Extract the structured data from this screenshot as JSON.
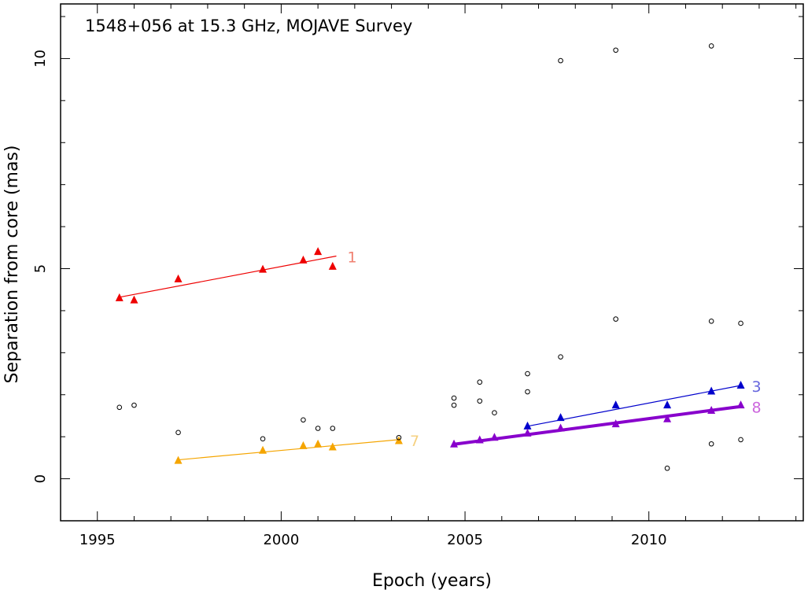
{
  "chart_data": {
    "type": "scatter",
    "title": "1548+056 at 15.3 GHz, MOJAVE Survey",
    "xlabel": "Epoch (years)",
    "ylabel": "Separation from core (mas)",
    "xlim": [
      1994,
      2014.2
    ],
    "ylim": [
      -1,
      11.3
    ],
    "xticks": [
      1995,
      2000,
      2005,
      2010
    ],
    "yticks": [
      0,
      5,
      10
    ],
    "grid": false,
    "series": [
      {
        "name": "1",
        "color": "#ee0000",
        "label_color": "#f08070",
        "thick": false,
        "x": [
          1995.6,
          1996.0,
          1997.2,
          1999.5,
          2000.6,
          2001.0,
          2001.4
        ],
        "y": [
          4.3,
          4.25,
          4.75,
          4.98,
          5.2,
          5.4,
          5.05
        ],
        "fit": [
          [
            1995.6,
            4.32
          ],
          [
            2001.5,
            5.3
          ]
        ]
      },
      {
        "name": "7",
        "color": "#f5a500",
        "label_color": "#f5d080",
        "thick": false,
        "x": [
          1997.2,
          1999.5,
          2000.6,
          2001.0,
          2001.4,
          2003.2
        ],
        "y": [
          0.43,
          0.67,
          0.78,
          0.82,
          0.75,
          0.9
        ],
        "fit": [
          [
            1997.2,
            0.45
          ],
          [
            2003.2,
            0.93
          ]
        ]
      },
      {
        "name": "3",
        "color": "#0000cc",
        "label_color": "#6666dd",
        "thick": false,
        "x": [
          2006.7,
          2007.6,
          2009.1,
          2010.5,
          2011.7,
          2012.5
        ],
        "y": [
          1.25,
          1.45,
          1.75,
          1.75,
          2.08,
          2.22
        ],
        "fit": [
          [
            2006.7,
            1.25
          ],
          [
            2012.5,
            2.22
          ]
        ]
      },
      {
        "name": "8",
        "color": "#8800cc",
        "label_color": "#cc66dd",
        "thick": true,
        "x": [
          2004.7,
          2005.4,
          2005.8,
          2006.7,
          2007.6,
          2009.1,
          2010.5,
          2011.7,
          2012.5
        ],
        "y": [
          0.82,
          0.92,
          0.98,
          1.08,
          1.2,
          1.3,
          1.42,
          1.62,
          1.75
        ],
        "fit": [
          [
            2004.7,
            0.82
          ],
          [
            2012.5,
            1.72
          ]
        ]
      }
    ],
    "unassigned": {
      "x": [
        1995.6,
        1996.0,
        1997.2,
        1999.5,
        2000.6,
        2001.0,
        2001.4,
        2003.2,
        2004.7,
        2004.7,
        2005.4,
        2005.4,
        2005.8,
        2006.7,
        2006.7,
        2007.6,
        2007.6,
        2009.1,
        2009.1,
        2010.5,
        2011.7,
        2011.7,
        2011.7,
        2012.5,
        2012.5
      ],
      "y": [
        1.7,
        1.75,
        1.1,
        0.95,
        1.4,
        1.2,
        1.2,
        0.98,
        1.92,
        1.75,
        2.3,
        1.85,
        1.57,
        2.5,
        2.07,
        2.9,
        9.95,
        3.8,
        10.2,
        0.25,
        3.75,
        10.3,
        0.83,
        3.7,
        0.93
      ]
    }
  }
}
